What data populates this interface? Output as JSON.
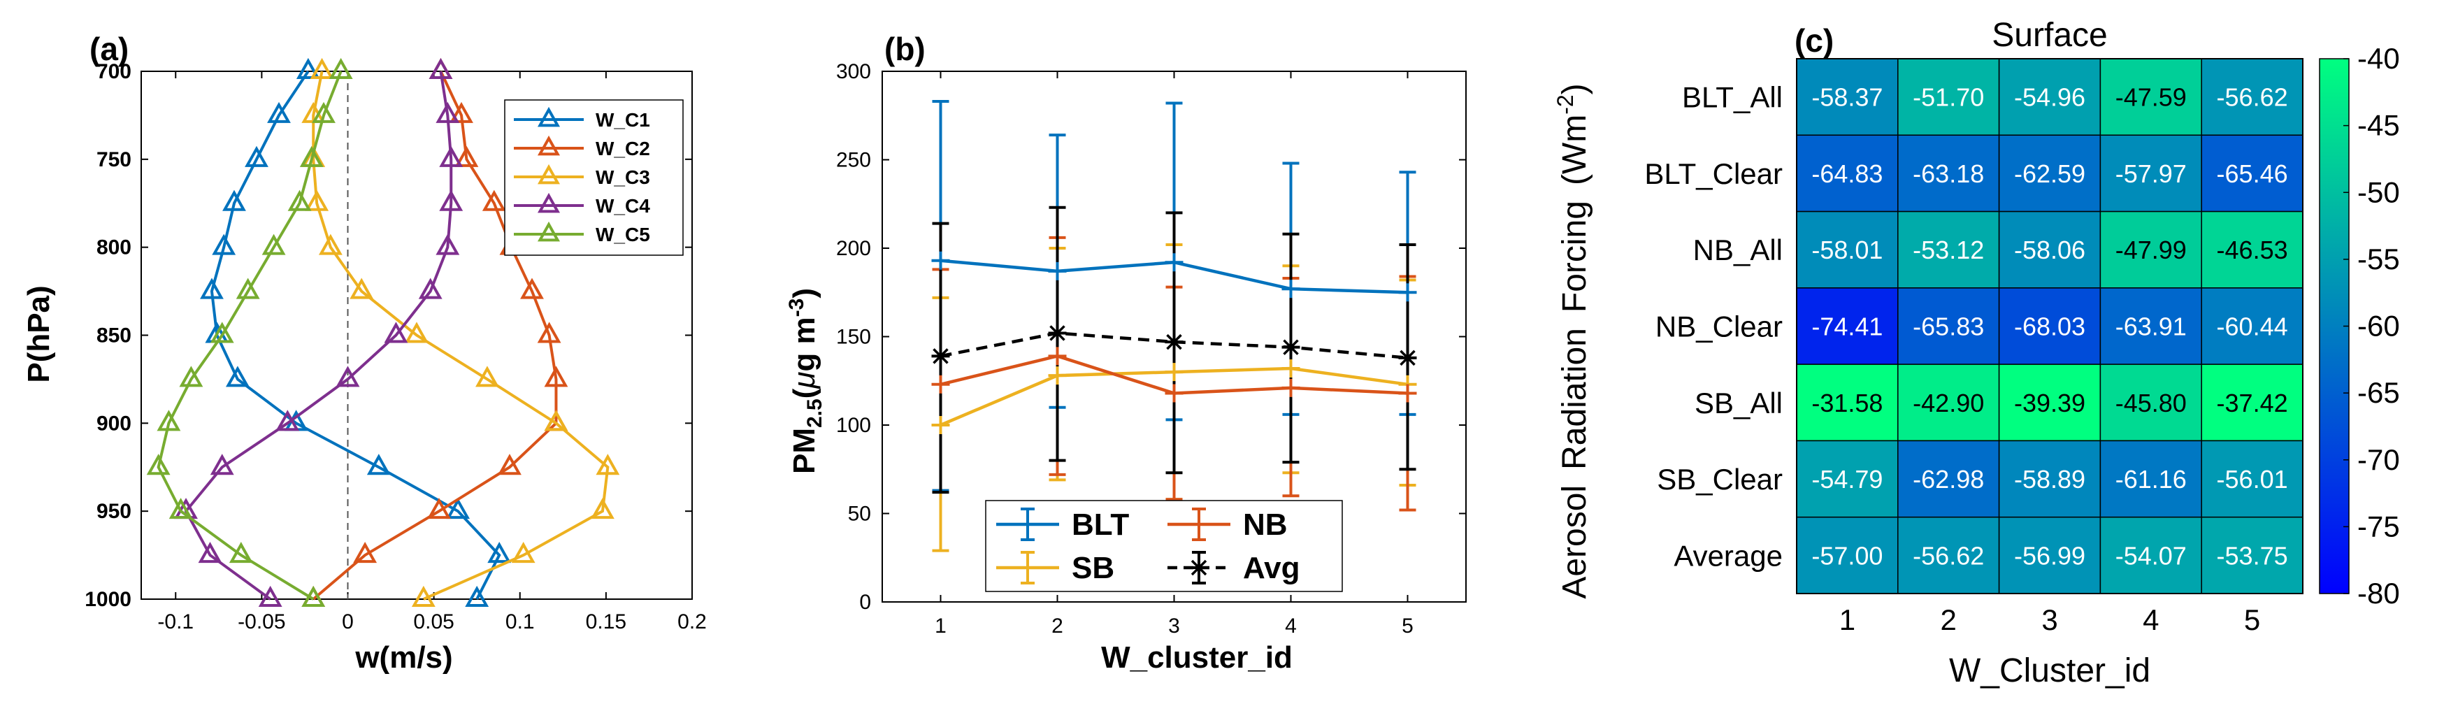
{
  "chart_data": [
    {
      "type": "line",
      "panel_label": "(a)",
      "xlabel": "w(m/s)",
      "ylabel": "P(hPa)",
      "xlim": [
        -0.12,
        0.2
      ],
      "ylim": [
        700,
        1000
      ],
      "y_reversed": true,
      "xticks": [
        -0.1,
        -0.05,
        0,
        0.05,
        0.1,
        0.15,
        0.2
      ],
      "xtick_labels": [
        "-0.1",
        "-0.05",
        "0",
        "0.05",
        "0.1",
        "0.15",
        "0.2"
      ],
      "yticks": [
        700,
        750,
        800,
        850,
        900,
        950,
        1000
      ],
      "ytick_labels": [
        "700",
        "750",
        "800",
        "850",
        "900",
        "950",
        "1000"
      ],
      "zero_line": 0,
      "legend_position": "top-right",
      "pressure_levels": [
        700,
        725,
        750,
        775,
        800,
        825,
        850,
        875,
        900,
        925,
        950,
        975,
        1000
      ],
      "series": [
        {
          "name": "W_C1",
          "color": "#0072BD",
          "values": [
            -0.023,
            -0.04,
            -0.053,
            -0.066,
            -0.072,
            -0.079,
            -0.076,
            -0.064,
            -0.03,
            0.018,
            0.064,
            0.088,
            0.075
          ]
        },
        {
          "name": "W_C2",
          "color": "#D95319",
          "values": [
            0.054,
            0.066,
            0.069,
            0.085,
            0.095,
            0.107,
            0.117,
            0.121,
            0.121,
            0.094,
            0.053,
            0.01,
            -0.02
          ]
        },
        {
          "name": "W_C3",
          "color": "#EDB120",
          "values": [
            -0.015,
            -0.02,
            -0.02,
            -0.018,
            -0.01,
            0.008,
            0.04,
            0.081,
            0.121,
            0.151,
            0.148,
            0.102,
            0.044
          ]
        },
        {
          "name": "W_C4",
          "color": "#7E2F8E",
          "values": [
            0.054,
            0.058,
            0.06,
            0.06,
            0.058,
            0.048,
            0.028,
            0.0,
            -0.035,
            -0.073,
            -0.094,
            -0.08,
            -0.045
          ]
        },
        {
          "name": "W_C5",
          "color": "#77AC30",
          "values": [
            -0.004,
            -0.014,
            -0.021,
            -0.028,
            -0.043,
            -0.058,
            -0.073,
            -0.091,
            -0.104,
            -0.11,
            -0.097,
            -0.062,
            -0.02
          ]
        }
      ]
    },
    {
      "type": "line",
      "panel_label": "(b)",
      "xlabel": "W_cluster_id",
      "ylabel_main": "PM",
      "ylabel_sub": "2.5",
      "ylabel_unit_a": "(",
      "ylabel_mu": "μ",
      "ylabel_unit_b": "g  m",
      "ylabel_sup": "-3",
      "ylabel_close": ")",
      "xlim": [
        0.5,
        5.5
      ],
      "ylim": [
        0,
        300
      ],
      "x": [
        1,
        2,
        3,
        4,
        5
      ],
      "xtick_labels": [
        "1",
        "2",
        "3",
        "4",
        "5"
      ],
      "yticks": [
        0,
        50,
        100,
        150,
        200,
        250,
        300
      ],
      "ytick_labels": [
        "0",
        "50",
        "100",
        "150",
        "200",
        "250",
        "300"
      ],
      "legend_position": "bottom",
      "series": [
        {
          "name": "BLT",
          "color": "#0072BD",
          "dashed": false,
          "marker": "plus",
          "values": [
            193,
            187,
            192,
            177,
            175
          ],
          "err_low": [
            63,
            110,
            103,
            106,
            106
          ],
          "err_high": [
            283,
            264,
            282,
            248,
            243
          ]
        },
        {
          "name": "NB",
          "color": "#D95319",
          "dashed": false,
          "marker": "plus",
          "values": [
            123,
            139,
            118,
            121,
            118
          ],
          "err_low": [
            63,
            72,
            58,
            60,
            52
          ],
          "err_high": [
            188,
            206,
            178,
            183,
            184
          ]
        },
        {
          "name": "SB",
          "color": "#EDB120",
          "dashed": false,
          "marker": "plus",
          "values": [
            100,
            128,
            130,
            132,
            123
          ],
          "err_low": [
            29,
            69,
            58,
            73,
            66
          ],
          "err_high": [
            172,
            200,
            202,
            190,
            182
          ]
        },
        {
          "name": "Avg",
          "color": "#000000",
          "dashed": true,
          "marker": "star",
          "values": [
            139,
            152,
            147,
            144,
            138
          ],
          "err_low": [
            62,
            80,
            73,
            79,
            75
          ],
          "err_high": [
            214,
            223,
            220,
            208,
            202
          ]
        }
      ]
    },
    {
      "type": "heatmap",
      "panel_label": "(c)",
      "title": "Surface",
      "xlabel": "W_Cluster_id",
      "ylabel_words": [
        "Aerosol",
        "Radiation",
        "Forcing",
        "(Wm",
        "-2",
        ")"
      ],
      "columns": [
        "1",
        "2",
        "3",
        "4",
        "5"
      ],
      "rows": [
        "BLT_All",
        "BLT_Clear",
        "NB_All",
        "NB_Clear",
        "SB_All",
        "SB_Clear",
        "Average"
      ],
      "values": [
        [
          -58.37,
          -51.7,
          -54.96,
          -47.59,
          -56.62
        ],
        [
          -64.83,
          -63.18,
          -62.59,
          -57.97,
          -65.46
        ],
        [
          -58.01,
          -53.12,
          -58.06,
          -47.99,
          -46.53
        ],
        [
          -74.41,
          -65.83,
          -68.03,
          -63.91,
          -60.44
        ],
        [
          -31.58,
          -42.9,
          -39.39,
          -45.8,
          -37.42
        ],
        [
          -54.79,
          -62.98,
          -58.89,
          -61.16,
          -56.01
        ],
        [
          -57.0,
          -56.62,
          -56.99,
          -54.07,
          -53.75
        ]
      ],
      "value_labels": [
        [
          "-58.37",
          "-51.70",
          "-54.96",
          "-47.59",
          "-56.62"
        ],
        [
          "-64.83",
          "-63.18",
          "-62.59",
          "-57.97",
          "-65.46"
        ],
        [
          "-58.01",
          "-53.12",
          "-58.06",
          "-47.99",
          "-46.53"
        ],
        [
          "-74.41",
          "-65.83",
          "-68.03",
          "-63.91",
          "-60.44"
        ],
        [
          "-31.58",
          "-42.90",
          "-39.39",
          "-45.80",
          "-37.42"
        ],
        [
          "-54.79",
          "-62.98",
          "-58.89",
          "-61.16",
          "-56.01"
        ],
        [
          "-57.00",
          "-56.62",
          "-56.99",
          "-54.07",
          "-53.75"
        ]
      ],
      "clim": [
        -80,
        -40
      ],
      "colormap": [
        "#0000FF",
        "#00FF80"
      ],
      "colorbar_ticks": [
        -40,
        -45,
        -50,
        -55,
        -60,
        -65,
        -70,
        -75,
        -80
      ],
      "colorbar_tick_labels": [
        "-40",
        "-45",
        "-50",
        "-55",
        "-60",
        "-65",
        "-70",
        "-75",
        "-80"
      ]
    }
  ]
}
